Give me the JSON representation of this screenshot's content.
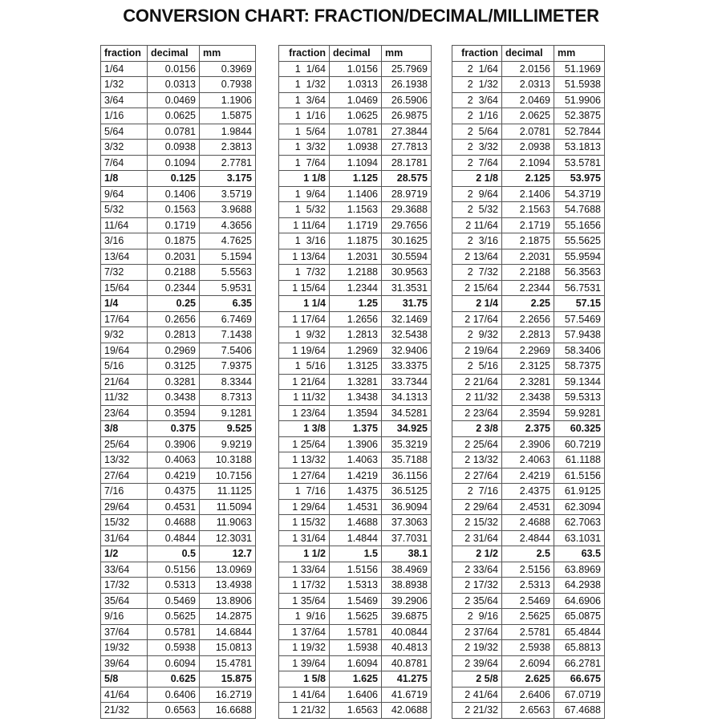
{
  "title": "CONVERSION CHART: FRACTION/DECIMAL/MILLIMETER",
  "headers": [
    "fraction",
    "decimal",
    "mm",
    "fraction",
    "decimal",
    "mm",
    "fraction",
    "decimal",
    "mm"
  ],
  "rows": [
    {
      "bold": false,
      "cells": [
        "1/64",
        "0.0156",
        "0.3969",
        "1  1/64",
        "1.0156",
        "25.7969",
        "2  1/64",
        "2.0156",
        "51.1969"
      ]
    },
    {
      "bold": false,
      "cells": [
        "1/32",
        "0.0313",
        "0.7938",
        "1  1/32",
        "1.0313",
        "26.1938",
        "2  1/32",
        "2.0313",
        "51.5938"
      ]
    },
    {
      "bold": false,
      "cells": [
        "3/64",
        "0.0469",
        "1.1906",
        "1  3/64",
        "1.0469",
        "26.5906",
        "2  3/64",
        "2.0469",
        "51.9906"
      ]
    },
    {
      "bold": false,
      "cells": [
        "1/16",
        "0.0625",
        "1.5875",
        "1  1/16",
        "1.0625",
        "26.9875",
        "2  1/16",
        "2.0625",
        "52.3875"
      ]
    },
    {
      "bold": false,
      "cells": [
        "5/64",
        "0.0781",
        "1.9844",
        "1  5/64",
        "1.0781",
        "27.3844",
        "2  5/64",
        "2.0781",
        "52.7844"
      ]
    },
    {
      "bold": false,
      "cells": [
        "3/32",
        "0.0938",
        "2.3813",
        "1  3/32",
        "1.0938",
        "27.7813",
        "2  3/32",
        "2.0938",
        "53.1813"
      ]
    },
    {
      "bold": false,
      "cells": [
        "7/64",
        "0.1094",
        "2.7781",
        "1  7/64",
        "1.1094",
        "28.1781",
        "2  7/64",
        "2.1094",
        "53.5781"
      ]
    },
    {
      "bold": true,
      "cells": [
        "1/8",
        "0.125",
        "3.175",
        "1 1/8",
        "1.125",
        "28.575",
        "2 1/8",
        "2.125",
        "53.975"
      ]
    },
    {
      "bold": false,
      "cells": [
        "9/64",
        "0.1406",
        "3.5719",
        "1  9/64",
        "1.1406",
        "28.9719",
        "2  9/64",
        "2.1406",
        "54.3719"
      ]
    },
    {
      "bold": false,
      "cells": [
        "5/32",
        "0.1563",
        "3.9688",
        "1  5/32",
        "1.1563",
        "29.3688",
        "2  5/32",
        "2.1563",
        "54.7688"
      ]
    },
    {
      "bold": false,
      "cells": [
        "11/64",
        "0.1719",
        "4.3656",
        "1 11/64",
        "1.1719",
        "29.7656",
        "2 11/64",
        "2.1719",
        "55.1656"
      ]
    },
    {
      "bold": false,
      "cells": [
        "3/16",
        "0.1875",
        "4.7625",
        "1  3/16",
        "1.1875",
        "30.1625",
        "2  3/16",
        "2.1875",
        "55.5625"
      ]
    },
    {
      "bold": false,
      "cells": [
        "13/64",
        "0.2031",
        "5.1594",
        "1 13/64",
        "1.2031",
        "30.5594",
        "2 13/64",
        "2.2031",
        "55.9594"
      ]
    },
    {
      "bold": false,
      "cells": [
        "7/32",
        "0.2188",
        "5.5563",
        "1  7/32",
        "1.2188",
        "30.9563",
        "2  7/32",
        "2.2188",
        "56.3563"
      ]
    },
    {
      "bold": false,
      "cells": [
        "15/64",
        "0.2344",
        "5.9531",
        "1 15/64",
        "1.2344",
        "31.3531",
        "2 15/64",
        "2.2344",
        "56.7531"
      ]
    },
    {
      "bold": true,
      "cells": [
        "1/4",
        "0.25",
        "6.35",
        "1 1/4",
        "1.25",
        "31.75",
        "2 1/4",
        "2.25",
        "57.15"
      ]
    },
    {
      "bold": false,
      "cells": [
        "17/64",
        "0.2656",
        "6.7469",
        "1 17/64",
        "1.2656",
        "32.1469",
        "2 17/64",
        "2.2656",
        "57.5469"
      ]
    },
    {
      "bold": false,
      "cells": [
        "9/32",
        "0.2813",
        "7.1438",
        "1  9/32",
        "1.2813",
        "32.5438",
        "2  9/32",
        "2.2813",
        "57.9438"
      ]
    },
    {
      "bold": false,
      "cells": [
        "19/64",
        "0.2969",
        "7.5406",
        "1 19/64",
        "1.2969",
        "32.9406",
        "2 19/64",
        "2.2969",
        "58.3406"
      ]
    },
    {
      "bold": false,
      "cells": [
        "5/16",
        "0.3125",
        "7.9375",
        "1  5/16",
        "1.3125",
        "33.3375",
        "2  5/16",
        "2.3125",
        "58.7375"
      ]
    },
    {
      "bold": false,
      "cells": [
        "21/64",
        "0.3281",
        "8.3344",
        "1 21/64",
        "1.3281",
        "33.7344",
        "2 21/64",
        "2.3281",
        "59.1344"
      ]
    },
    {
      "bold": false,
      "cells": [
        "11/32",
        "0.3438",
        "8.7313",
        "1 11/32",
        "1.3438",
        "34.1313",
        "2 11/32",
        "2.3438",
        "59.5313"
      ]
    },
    {
      "bold": false,
      "cells": [
        "23/64",
        "0.3594",
        "9.1281",
        "1 23/64",
        "1.3594",
        "34.5281",
        "2 23/64",
        "2.3594",
        "59.9281"
      ]
    },
    {
      "bold": true,
      "cells": [
        "3/8",
        "0.375",
        "9.525",
        "1 3/8",
        "1.375",
        "34.925",
        "2 3/8",
        "2.375",
        "60.325"
      ]
    },
    {
      "bold": false,
      "cells": [
        "25/64",
        "0.3906",
        "9.9219",
        "1 25/64",
        "1.3906",
        "35.3219",
        "2 25/64",
        "2.3906",
        "60.7219"
      ]
    },
    {
      "bold": false,
      "cells": [
        "13/32",
        "0.4063",
        "10.3188",
        "1 13/32",
        "1.4063",
        "35.7188",
        "2 13/32",
        "2.4063",
        "61.1188"
      ]
    },
    {
      "bold": false,
      "cells": [
        "27/64",
        "0.4219",
        "10.7156",
        "1 27/64",
        "1.4219",
        "36.1156",
        "2 27/64",
        "2.4219",
        "61.5156"
      ]
    },
    {
      "bold": false,
      "cells": [
        "7/16",
        "0.4375",
        "11.1125",
        "1  7/16",
        "1.4375",
        "36.5125",
        "2  7/16",
        "2.4375",
        "61.9125"
      ]
    },
    {
      "bold": false,
      "cells": [
        "29/64",
        "0.4531",
        "11.5094",
        "1 29/64",
        "1.4531",
        "36.9094",
        "2 29/64",
        "2.4531",
        "62.3094"
      ]
    },
    {
      "bold": false,
      "cells": [
        "15/32",
        "0.4688",
        "11.9063",
        "1 15/32",
        "1.4688",
        "37.3063",
        "2 15/32",
        "2.4688",
        "62.7063"
      ]
    },
    {
      "bold": false,
      "cells": [
        "31/64",
        "0.4844",
        "12.3031",
        "1 31/64",
        "1.4844",
        "37.7031",
        "2 31/64",
        "2.4844",
        "63.1031"
      ]
    },
    {
      "bold": true,
      "cells": [
        "1/2",
        "0.5",
        "12.7",
        "1 1/2",
        "1.5",
        "38.1",
        "2 1/2",
        "2.5",
        "63.5"
      ]
    },
    {
      "bold": false,
      "cells": [
        "33/64",
        "0.5156",
        "13.0969",
        "1 33/64",
        "1.5156",
        "38.4969",
        "2 33/64",
        "2.5156",
        "63.8969"
      ]
    },
    {
      "bold": false,
      "cells": [
        "17/32",
        "0.5313",
        "13.4938",
        "1 17/32",
        "1.5313",
        "38.8938",
        "2 17/32",
        "2.5313",
        "64.2938"
      ]
    },
    {
      "bold": false,
      "cells": [
        "35/64",
        "0.5469",
        "13.8906",
        "1 35/64",
        "1.5469",
        "39.2906",
        "2 35/64",
        "2.5469",
        "64.6906"
      ]
    },
    {
      "bold": false,
      "cells": [
        "9/16",
        "0.5625",
        "14.2875",
        "1  9/16",
        "1.5625",
        "39.6875",
        "2  9/16",
        "2.5625",
        "65.0875"
      ]
    },
    {
      "bold": false,
      "cells": [
        "37/64",
        "0.5781",
        "14.6844",
        "1 37/64",
        "1.5781",
        "40.0844",
        "2 37/64",
        "2.5781",
        "65.4844"
      ]
    },
    {
      "bold": false,
      "cells": [
        "19/32",
        "0.5938",
        "15.0813",
        "1 19/32",
        "1.5938",
        "40.4813",
        "2 19/32",
        "2.5938",
        "65.8813"
      ]
    },
    {
      "bold": false,
      "cells": [
        "39/64",
        "0.6094",
        "15.4781",
        "1 39/64",
        "1.6094",
        "40.8781",
        "2 39/64",
        "2.6094",
        "66.2781"
      ]
    },
    {
      "bold": true,
      "cells": [
        "5/8",
        "0.625",
        "15.875",
        "1 5/8",
        "1.625",
        "41.275",
        "2 5/8",
        "2.625",
        "66.675"
      ]
    },
    {
      "bold": false,
      "cells": [
        "41/64",
        "0.6406",
        "16.2719",
        "1 41/64",
        "1.6406",
        "41.6719",
        "2 41/64",
        "2.6406",
        "67.0719"
      ]
    },
    {
      "bold": false,
      "cells": [
        "21/32",
        "0.6563",
        "16.6688",
        "1 21/32",
        "1.6563",
        "42.0688",
        "2 21/32",
        "2.6563",
        "67.4688"
      ]
    }
  ]
}
